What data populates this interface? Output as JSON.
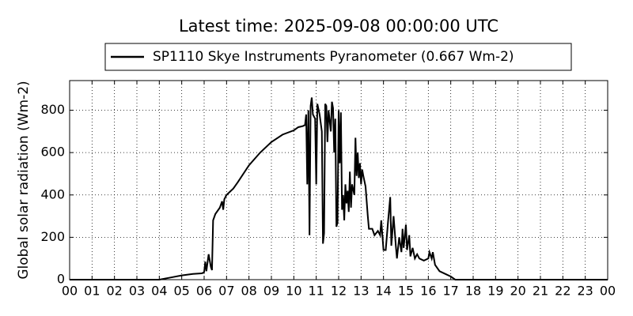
{
  "chart_data": {
    "type": "line",
    "title": "Latest time: 2025-09-08 00:00:00 UTC",
    "y_label": "Global solar radiation (Wm-2)",
    "grid": true,
    "legend": "upper center",
    "xlim": [
      0,
      24
    ],
    "xticks": [
      {
        "value": 0,
        "label": "00"
      },
      {
        "value": 1,
        "label": "01"
      },
      {
        "value": 2,
        "label": "02"
      },
      {
        "value": 3,
        "label": "03"
      },
      {
        "value": 4,
        "label": "04"
      },
      {
        "value": 5,
        "label": "05"
      },
      {
        "value": 6,
        "label": "06"
      },
      {
        "value": 7,
        "label": "07"
      },
      {
        "value": 8,
        "label": "08"
      },
      {
        "value": 9,
        "label": "09"
      },
      {
        "value": 10,
        "label": "10"
      },
      {
        "value": 11,
        "label": "11"
      },
      {
        "value": 12,
        "label": "12"
      },
      {
        "value": 13,
        "label": "13"
      },
      {
        "value": 14,
        "label": "14"
      },
      {
        "value": 15,
        "label": "15"
      },
      {
        "value": 16,
        "label": "16"
      },
      {
        "value": 17,
        "label": "17"
      },
      {
        "value": 18,
        "label": "18"
      },
      {
        "value": 19,
        "label": "19"
      },
      {
        "value": 20,
        "label": "20"
      },
      {
        "value": 21,
        "label": "21"
      },
      {
        "value": 22,
        "label": "22"
      },
      {
        "value": 23,
        "label": "23"
      },
      {
        "value": 24,
        "label": "00"
      }
    ],
    "ylim": [
      0,
      940
    ],
    "yticks": [
      0,
      200,
      400,
      600,
      800
    ],
    "x": [
      0,
      4.0,
      4.5,
      5,
      5.5,
      5.9,
      6.0,
      6.05,
      6.1,
      6.2,
      6.3,
      6.35,
      6.4,
      6.5,
      6.7,
      6.8,
      6.85,
      6.9,
      7.0,
      7.2,
      7.3,
      7.5,
      8,
      8.5,
      9,
      9.5,
      10,
      10.2,
      10.4,
      10.5,
      10.55,
      10.6,
      10.65,
      10.7,
      10.75,
      10.8,
      10.85,
      10.95,
      11.0,
      11.05,
      11.15,
      11.25,
      11.3,
      11.35,
      11.4,
      11.45,
      11.5,
      11.55,
      11.65,
      11.7,
      11.75,
      11.8,
      11.85,
      11.9,
      11.95,
      12.0,
      12.05,
      12.1,
      12.15,
      12.2,
      12.25,
      12.3,
      12.35,
      12.4,
      12.45,
      12.5,
      12.55,
      12.6,
      12.7,
      12.75,
      12.8,
      12.85,
      12.9,
      12.95,
      13.0,
      13.05,
      13.1,
      13.2,
      13.3,
      13.35,
      13.5,
      13.6,
      13.75,
      13.85,
      13.9,
      14.0,
      14.1,
      14.2,
      14.3,
      14.35,
      14.45,
      14.5,
      14.55,
      14.6,
      14.7,
      14.8,
      14.85,
      14.9,
      15.0,
      15.05,
      15.15,
      15.2,
      15.3,
      15.4,
      15.5,
      15.6,
      15.8,
      16.0,
      16.05,
      16.15,
      16.2,
      16.3,
      16.5,
      16.8,
      17.0,
      17.2,
      24
    ],
    "series": [
      {
        "name": "SP1110 Skye Instruments Pyranometer (0.667 Wm-2)",
        "color": "#000000",
        "values": [
          0,
          0,
          10,
          20,
          27,
          30,
          35,
          85,
          40,
          120,
          60,
          45,
          280,
          310,
          340,
          370,
          330,
          380,
          400,
          420,
          430,
          460,
          540,
          600,
          650,
          685,
          705,
          720,
          725,
          730,
          780,
          450,
          800,
          210,
          820,
          860,
          780,
          760,
          450,
          830,
          780,
          700,
          170,
          220,
          830,
          820,
          650,
          800,
          700,
          840,
          810,
          600,
          760,
          250,
          270,
          800,
          550,
          790,
          330,
          400,
          280,
          450,
          360,
          420,
          320,
          510,
          340,
          450,
          400,
          670,
          490,
          600,
          480,
          550,
          450,
          520,
          490,
          440,
          300,
          240,
          240,
          210,
          230,
          210,
          280,
          140,
          140,
          270,
          390,
          160,
          300,
          230,
          160,
          100,
          200,
          130,
          240,
          150,
          260,
          140,
          210,
          110,
          150,
          100,
          120,
          100,
          90,
          100,
          130,
          100,
          130,
          70,
          40,
          25,
          15,
          0,
          0
        ]
      }
    ]
  }
}
